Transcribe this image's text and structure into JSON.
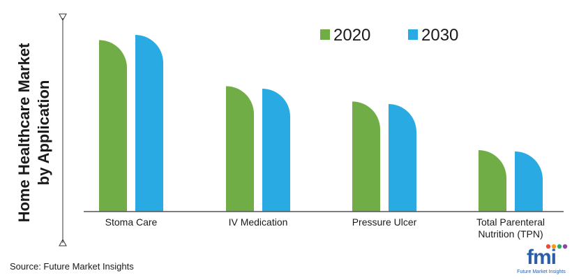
{
  "chart_data": {
    "type": "bar",
    "categories": [
      [
        "Stoma Care"
      ],
      [
        "IV Medication"
      ],
      [
        "Pressure Ulcer"
      ],
      [
        "Total Parenteral",
        "Nutrition (TPN)"
      ]
    ],
    "series": [
      {
        "name": "2020",
        "values": [
          268,
          196,
          172,
          96
        ],
        "color": "#71ad47"
      },
      {
        "name": "2030",
        "values": [
          276,
          192,
          168,
          94
        ],
        "color": "#2aaae2"
      }
    ],
    "ylabel": [
      "Home Healthcare Market",
      "by Application"
    ],
    "ylim": [
      0,
      300
    ],
    "grid": false,
    "legend_position": "top-right"
  },
  "source": "Source: Future Market Insights",
  "logo": {
    "text": "fmi",
    "subtitle": "Future Market Insights",
    "dot_colors": [
      "#e84c3d",
      "#f39c12",
      "#27ae60",
      "#8e44ad"
    ]
  }
}
